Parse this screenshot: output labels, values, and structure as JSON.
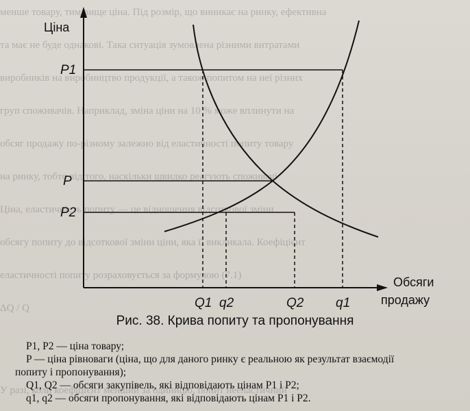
{
  "diagram": {
    "y_axis_label": "Ціна",
    "x_axis_label_line1": "Обсяги",
    "x_axis_label_line2": "продажу",
    "price_labels": {
      "p1": "P1",
      "p": "P",
      "p2": "P2"
    },
    "quantity_labels": {
      "Q1": "Q1",
      "q2": "q2",
      "Q2": "Q2",
      "q1": "q1"
    },
    "curves": [
      "demand",
      "supply"
    ]
  },
  "caption": "Рис. 38. Крива попиту та пропонування",
  "legend": {
    "line1": "P1, P2 — ціна товару;",
    "line2": "P — ціна рівноваги (ціна, що для даного ринку є реальною як результат взаємодії",
    "line2b": "попиту і пропонування);",
    "line3": "Q1, Q2 — обсяги закупівель, які відповідають цінам P1 і P2;",
    "line4": "q1, q2 — обсяги пропонування, які відповідають цінам P1 і P2."
  }
}
